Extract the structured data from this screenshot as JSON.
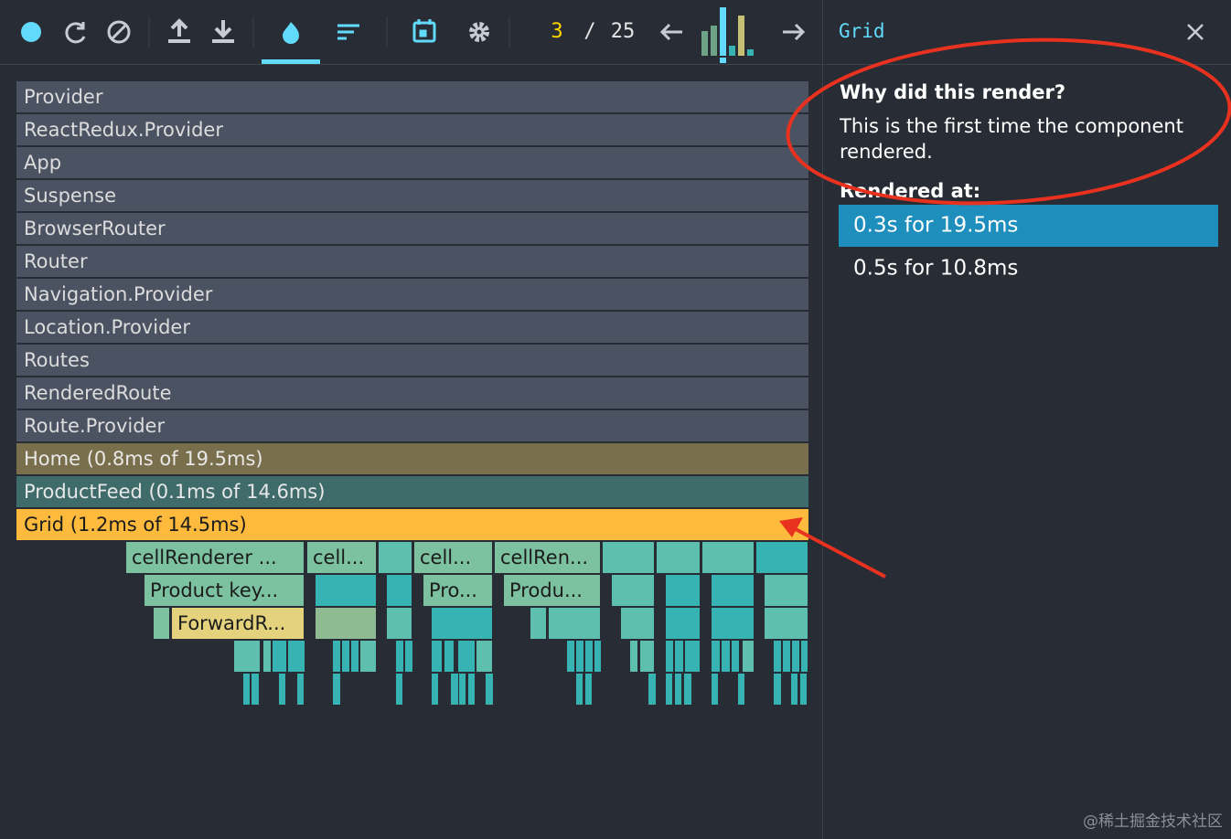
{
  "toolbar": {
    "commit_index": "3",
    "separator": "/",
    "commit_count": "25"
  },
  "flamegraph": {
    "rows": [
      "Provider",
      "ReactRedux.Provider",
      "App",
      "Suspense",
      "BrowserRouter",
      "Router",
      "Navigation.Provider",
      "Location.Provider",
      "Routes",
      "RenderedRoute",
      "Route.Provider",
      "Home (0.8ms of 19.5ms)",
      "ProductFeed (0.1ms of 14.6ms)",
      "Grid (1.2ms of 14.5ms)"
    ],
    "children": [
      "cellRenderer ...",
      "cell...",
      "cell...",
      "cellRen...",
      "Product key...",
      "Pro...",
      "Produ...",
      "ForwardR..."
    ]
  },
  "sidebar": {
    "title": "Grid",
    "why_heading": "Why did this render?",
    "why_text": "This is the first time the component rendered.",
    "rendered_at_heading": "Rendered at:",
    "renders": [
      "0.3s for 19.5ms",
      "0.5s for 10.8ms"
    ]
  },
  "watermark": "@稀土掘金技术社区"
}
